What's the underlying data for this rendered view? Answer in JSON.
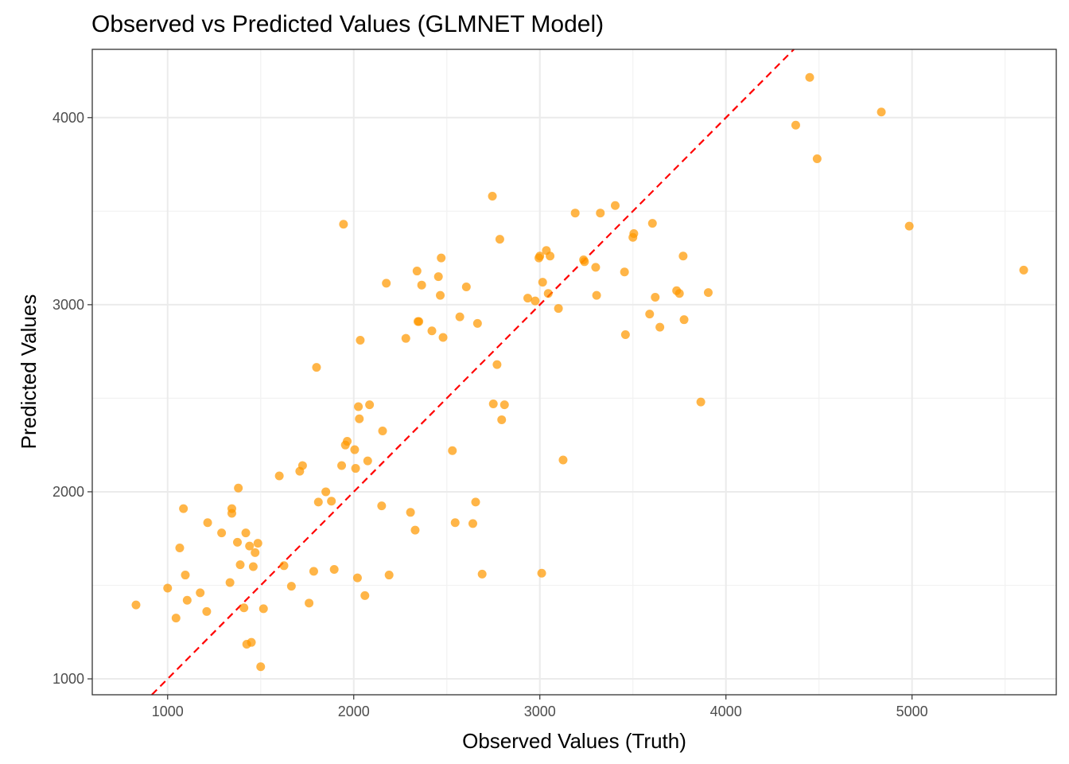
{
  "chart_data": {
    "type": "scatter",
    "title": "Observed vs Predicted Values (GLMNET Model)",
    "xlabel": "Observed Values (Truth)",
    "ylabel": "Predicted Values",
    "xlim": [
      595,
      5775
    ],
    "ylim": [
      915,
      4365
    ],
    "x_ticks": [
      1000,
      2000,
      3000,
      4000,
      5000
    ],
    "x_tick_labels": [
      "1000",
      "2000",
      "3000",
      "4000",
      "5000"
    ],
    "y_ticks": [
      1000,
      2000,
      3000,
      4000
    ],
    "y_tick_labels": [
      "1000",
      "2000",
      "3000",
      "4000"
    ],
    "grid": true,
    "point_color": "#ff9900",
    "reference_line": {
      "type": "identity",
      "slope": 1,
      "intercept": 0,
      "color": "#ff0000",
      "style": "dashed"
    },
    "points": [
      {
        "x": 830,
        "y": 1395
      },
      {
        "x": 1000,
        "y": 1485
      },
      {
        "x": 1045,
        "y": 1325
      },
      {
        "x": 1065,
        "y": 1700
      },
      {
        "x": 1085,
        "y": 1910
      },
      {
        "x": 1095,
        "y": 1555
      },
      {
        "x": 1105,
        "y": 1420
      },
      {
        "x": 1175,
        "y": 1460
      },
      {
        "x": 1210,
        "y": 1360
      },
      {
        "x": 1215,
        "y": 1835
      },
      {
        "x": 1290,
        "y": 1780
      },
      {
        "x": 1335,
        "y": 1515
      },
      {
        "x": 1345,
        "y": 1885
      },
      {
        "x": 1345,
        "y": 1910
      },
      {
        "x": 1375,
        "y": 1730
      },
      {
        "x": 1380,
        "y": 2020
      },
      {
        "x": 1390,
        "y": 1610
      },
      {
        "x": 1410,
        "y": 1380
      },
      {
        "x": 1420,
        "y": 1780
      },
      {
        "x": 1425,
        "y": 1185
      },
      {
        "x": 1440,
        "y": 1710
      },
      {
        "x": 1450,
        "y": 1195
      },
      {
        "x": 1460,
        "y": 1600
      },
      {
        "x": 1470,
        "y": 1675
      },
      {
        "x": 1485,
        "y": 1725
      },
      {
        "x": 1500,
        "y": 1065
      },
      {
        "x": 1515,
        "y": 1375
      },
      {
        "x": 1600,
        "y": 2085
      },
      {
        "x": 1625,
        "y": 1605
      },
      {
        "x": 1665,
        "y": 1495
      },
      {
        "x": 1710,
        "y": 2110
      },
      {
        "x": 1725,
        "y": 2140
      },
      {
        "x": 1760,
        "y": 1405
      },
      {
        "x": 1785,
        "y": 1575
      },
      {
        "x": 1800,
        "y": 2665
      },
      {
        "x": 1810,
        "y": 1945
      },
      {
        "x": 1850,
        "y": 2000
      },
      {
        "x": 1880,
        "y": 1950
      },
      {
        "x": 1895,
        "y": 1585
      },
      {
        "x": 1935,
        "y": 2140
      },
      {
        "x": 1945,
        "y": 3430
      },
      {
        "x": 1955,
        "y": 2250
      },
      {
        "x": 1965,
        "y": 2270
      },
      {
        "x": 2005,
        "y": 2225
      },
      {
        "x": 2010,
        "y": 2125
      },
      {
        "x": 2020,
        "y": 1540
      },
      {
        "x": 2025,
        "y": 2455
      },
      {
        "x": 2030,
        "y": 2390
      },
      {
        "x": 2035,
        "y": 2810
      },
      {
        "x": 2060,
        "y": 1445
      },
      {
        "x": 2075,
        "y": 2165
      },
      {
        "x": 2085,
        "y": 2465
      },
      {
        "x": 2150,
        "y": 1925
      },
      {
        "x": 2155,
        "y": 2325
      },
      {
        "x": 2175,
        "y": 3115
      },
      {
        "x": 2190,
        "y": 1555
      },
      {
        "x": 2280,
        "y": 2820
      },
      {
        "x": 2305,
        "y": 1890
      },
      {
        "x": 2330,
        "y": 1795
      },
      {
        "x": 2340,
        "y": 3180
      },
      {
        "x": 2345,
        "y": 2910
      },
      {
        "x": 2350,
        "y": 2910
      },
      {
        "x": 2365,
        "y": 3105
      },
      {
        "x": 2420,
        "y": 2860
      },
      {
        "x": 2455,
        "y": 3150
      },
      {
        "x": 2465,
        "y": 3050
      },
      {
        "x": 2470,
        "y": 3250
      },
      {
        "x": 2480,
        "y": 2825
      },
      {
        "x": 2530,
        "y": 2220
      },
      {
        "x": 2545,
        "y": 1835
      },
      {
        "x": 2570,
        "y": 2935
      },
      {
        "x": 2605,
        "y": 3095
      },
      {
        "x": 2640,
        "y": 1830
      },
      {
        "x": 2655,
        "y": 1945
      },
      {
        "x": 2665,
        "y": 2900
      },
      {
        "x": 2690,
        "y": 1560
      },
      {
        "x": 2745,
        "y": 3580
      },
      {
        "x": 2750,
        "y": 2470
      },
      {
        "x": 2770,
        "y": 2680
      },
      {
        "x": 2785,
        "y": 3350
      },
      {
        "x": 2795,
        "y": 2385
      },
      {
        "x": 2810,
        "y": 2465
      },
      {
        "x": 2935,
        "y": 3035
      },
      {
        "x": 2975,
        "y": 3020
      },
      {
        "x": 2995,
        "y": 3250
      },
      {
        "x": 3000,
        "y": 3260
      },
      {
        "x": 3010,
        "y": 1565
      },
      {
        "x": 3015,
        "y": 3120
      },
      {
        "x": 3035,
        "y": 3290
      },
      {
        "x": 3045,
        "y": 3060
      },
      {
        "x": 3055,
        "y": 3260
      },
      {
        "x": 3100,
        "y": 2980
      },
      {
        "x": 3125,
        "y": 2170
      },
      {
        "x": 3190,
        "y": 3490
      },
      {
        "x": 3235,
        "y": 3240
      },
      {
        "x": 3240,
        "y": 3230
      },
      {
        "x": 3300,
        "y": 3200
      },
      {
        "x": 3305,
        "y": 3050
      },
      {
        "x": 3325,
        "y": 3490
      },
      {
        "x": 3405,
        "y": 3530
      },
      {
        "x": 3455,
        "y": 3175
      },
      {
        "x": 3460,
        "y": 2840
      },
      {
        "x": 3500,
        "y": 3360
      },
      {
        "x": 3505,
        "y": 3380
      },
      {
        "x": 3590,
        "y": 2950
      },
      {
        "x": 3605,
        "y": 3435
      },
      {
        "x": 3620,
        "y": 3040
      },
      {
        "x": 3645,
        "y": 2880
      },
      {
        "x": 3735,
        "y": 3075
      },
      {
        "x": 3750,
        "y": 3060
      },
      {
        "x": 3770,
        "y": 3260
      },
      {
        "x": 3775,
        "y": 2920
      },
      {
        "x": 3865,
        "y": 2480
      },
      {
        "x": 3905,
        "y": 3065
      },
      {
        "x": 4375,
        "y": 3960
      },
      {
        "x": 4450,
        "y": 4215
      },
      {
        "x": 4490,
        "y": 3780
      },
      {
        "x": 4835,
        "y": 4030
      },
      {
        "x": 4985,
        "y": 3420
      },
      {
        "x": 5600,
        "y": 3185
      }
    ]
  }
}
